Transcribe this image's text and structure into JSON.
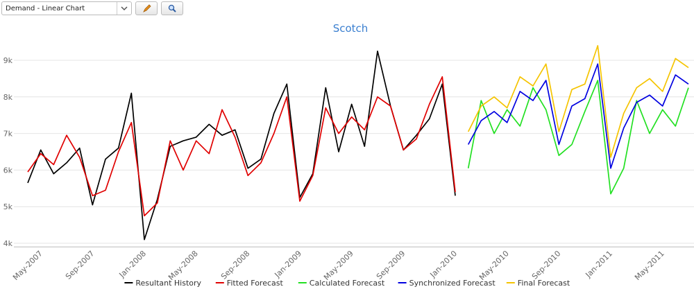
{
  "toolbar": {
    "view_select": "Demand - Linear Chart"
  },
  "chart_data": {
    "type": "line",
    "title": "Scotch",
    "categories": [
      null,
      "May-2007",
      null,
      null,
      null,
      "Sep-2007",
      null,
      null,
      null,
      "Jan-2008",
      null,
      null,
      null,
      "May-2008",
      null,
      null,
      null,
      "Sep-2008",
      null,
      null,
      null,
      "Jan-2009",
      null,
      null,
      null,
      "May-2009",
      null,
      null,
      null,
      "Sep-2009",
      null,
      null,
      null,
      "Jan-2010",
      null,
      null,
      null,
      "May-2010",
      null,
      null,
      null,
      "Sep-2010",
      null,
      null,
      null,
      "Jan-2011",
      null,
      null,
      null,
      "May-2011",
      null,
      null
    ],
    "series": [
      {
        "name": "Resultant History",
        "color": "#000000",
        "values": [
          5650,
          6550,
          5900,
          6200,
          6600,
          5050,
          6300,
          6600,
          8100,
          4100,
          5200,
          6650,
          6800,
          6900,
          7250,
          6950,
          7100,
          6050,
          6300,
          7550,
          8350,
          5250,
          5900,
          8250,
          6500,
          7800,
          6650,
          9250,
          7750,
          6550,
          6950,
          7400,
          8350,
          5300,
          null,
          null,
          null,
          null,
          null,
          null,
          null,
          null,
          null,
          null,
          null,
          null,
          null,
          null,
          null,
          null,
          null,
          null
        ]
      },
      {
        "name": "Fitted Forecast",
        "color": "#e00000",
        "values": [
          5950,
          6450,
          6150,
          6950,
          6350,
          5300,
          5450,
          6500,
          7300,
          4750,
          5100,
          6800,
          6000,
          6800,
          6450,
          7650,
          6900,
          5850,
          6200,
          7000,
          8000,
          5150,
          5850,
          7700,
          7000,
          7450,
          7100,
          8000,
          7750,
          6550,
          6850,
          7800,
          8550,
          5400,
          null,
          null,
          null,
          null,
          null,
          null,
          null,
          null,
          null,
          null,
          null,
          null,
          null,
          null,
          null,
          null,
          null,
          null
        ]
      },
      {
        "name": "Calculated Forecast",
        "color": "#22e022",
        "values": [
          null,
          null,
          null,
          null,
          null,
          null,
          null,
          null,
          null,
          null,
          null,
          null,
          null,
          null,
          null,
          null,
          null,
          null,
          null,
          null,
          null,
          null,
          null,
          null,
          null,
          null,
          null,
          null,
          null,
          null,
          null,
          null,
          null,
          null,
          6050,
          7900,
          7000,
          7650,
          7200,
          8250,
          7650,
          6400,
          6700,
          7600,
          8450,
          5350,
          6050,
          7900,
          7000,
          7650,
          7200,
          8250
        ]
      },
      {
        "name": "Synchronized Forecast",
        "color": "#0000e0",
        "values": [
          null,
          null,
          null,
          null,
          null,
          null,
          null,
          null,
          null,
          null,
          null,
          null,
          null,
          null,
          null,
          null,
          null,
          null,
          null,
          null,
          null,
          null,
          null,
          null,
          null,
          null,
          null,
          null,
          null,
          null,
          null,
          null,
          null,
          null,
          6700,
          7350,
          7600,
          7300,
          8150,
          7900,
          8450,
          6700,
          7750,
          7950,
          8900,
          6050,
          7150,
          7850,
          8050,
          7750,
          8600,
          8350
        ]
      },
      {
        "name": "Final Forecast",
        "color": "#f5c400",
        "values": [
          null,
          null,
          null,
          null,
          null,
          null,
          null,
          null,
          null,
          null,
          null,
          null,
          null,
          null,
          null,
          null,
          null,
          null,
          null,
          null,
          null,
          null,
          null,
          null,
          null,
          null,
          null,
          null,
          null,
          null,
          null,
          null,
          null,
          null,
          7050,
          7750,
          8000,
          7700,
          8550,
          8300,
          8900,
          7050,
          8200,
          8350,
          9400,
          6350,
          7550,
          8250,
          8500,
          8150,
          9050,
          8800
        ]
      }
    ],
    "ylim": [
      3900,
      9500
    ],
    "yticks": [
      {
        "value": 4000,
        "label": "4k"
      },
      {
        "value": 5000,
        "label": "5k"
      },
      {
        "value": 6000,
        "label": "6k"
      },
      {
        "value": 7000,
        "label": "7k"
      },
      {
        "value": 8000,
        "label": "8k"
      },
      {
        "value": 9000,
        "label": "9k"
      }
    ],
    "grid": true,
    "legend": "bottom"
  }
}
